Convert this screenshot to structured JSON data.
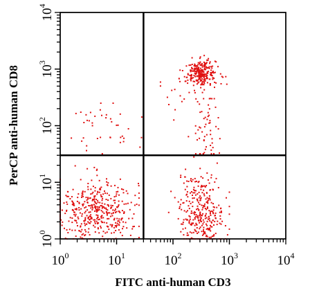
{
  "chart_data": {
    "type": "scatter",
    "xlabel": "FITC anti-human CD3",
    "ylabel": "PerCP anti-human CD8",
    "xscale": "log",
    "yscale": "log",
    "xlim": [
      1,
      10000
    ],
    "ylim": [
      1,
      10000
    ],
    "x_ticks": [
      {
        "base": "10",
        "exp": "0"
      },
      {
        "base": "10",
        "exp": "1"
      },
      {
        "base": "10",
        "exp": "2"
      },
      {
        "base": "10",
        "exp": "3"
      },
      {
        "base": "10",
        "exp": "4"
      }
    ],
    "y_ticks": [
      {
        "base": "10",
        "exp": "0"
      },
      {
        "base": "10",
        "exp": "1"
      },
      {
        "base": "10",
        "exp": "2"
      },
      {
        "base": "10",
        "exp": "3"
      },
      {
        "base": "10",
        "exp": "4"
      }
    ],
    "quadrant_gates": {
      "x": 30,
      "y": 30
    },
    "point_color": "#e01010",
    "populations": [
      {
        "count": 430,
        "x_center": 4.5,
        "y_center": 3.2,
        "x_spread_decades": 0.36,
        "y_spread_decades": 0.28,
        "x_min": 1,
        "x_max": 25,
        "y_min": 1,
        "y_max": 28
      },
      {
        "count": 330,
        "x_center": 320,
        "y_center": 3.0,
        "x_spread_decades": 0.2,
        "y_spread_decades": 0.34,
        "x_min": 80,
        "x_max": 1000,
        "y_min": 1,
        "y_max": 28
      },
      {
        "count": 250,
        "x_center": 320,
        "y_center": 850,
        "x_spread_decades": 0.13,
        "y_spread_decades": 0.11,
        "x_min": 100,
        "x_max": 800,
        "y_min": 300,
        "y_max": 2000
      },
      {
        "count": 40,
        "x_center": 5,
        "y_center": 80,
        "x_spread_decades": 0.35,
        "y_spread_decades": 0.28,
        "x_min": 1.5,
        "x_max": 28,
        "y_min": 32,
        "y_max": 250
      },
      {
        "count": 55,
        "x_center": 420,
        "y_center": 90,
        "x_spread_decades": 0.1,
        "y_spread_decades": 0.35,
        "x_min": 150,
        "x_max": 800,
        "y_min": 32,
        "y_max": 300
      },
      {
        "count": 35,
        "x_center": 200,
        "y_center": 400,
        "x_spread_decades": 0.35,
        "y_spread_decades": 0.35,
        "x_min": 60,
        "x_max": 900,
        "y_min": 40,
        "y_max": 1500
      }
    ]
  }
}
